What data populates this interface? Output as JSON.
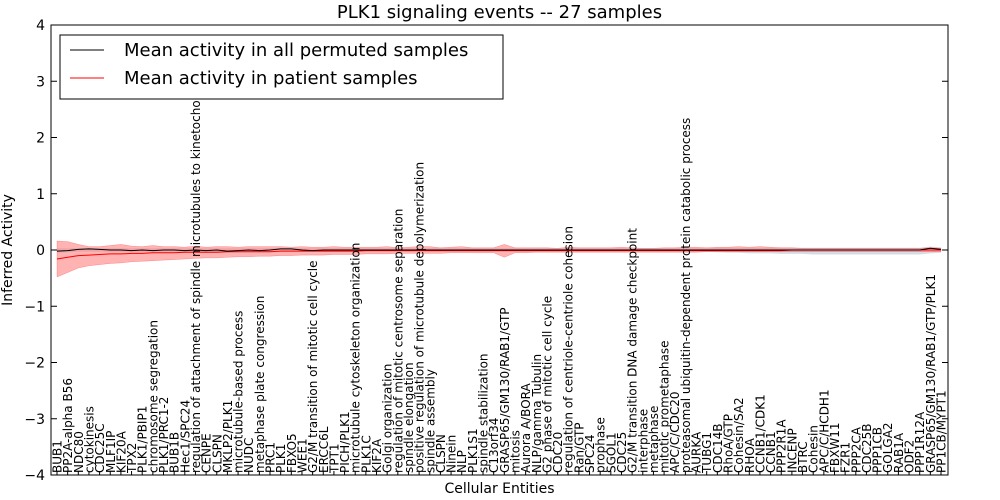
{
  "chart_data": {
    "type": "line",
    "title": "PLK1 signaling events -- 27 samples",
    "xlabel": "Cellular Entities",
    "ylabel": "Inferred Activity",
    "ylim": [
      -4,
      4
    ],
    "yticks": [
      -4,
      -3,
      -2,
      -1,
      0,
      1,
      2,
      3,
      4
    ],
    "grid": false,
    "legend_position": "top-left",
    "legend": [
      "Mean activity in all permuted samples",
      "Mean activity in patient samples"
    ],
    "colors": {
      "permuted": "#000000",
      "patient": "#ff0000",
      "patient_band": "#ff8080",
      "permuted_band": "#b0b8c8"
    },
    "categories": [
      "BUB1",
      "PP2A-alpha B56",
      "NDC80",
      "cytokinesis",
      "CDC25C",
      "MLF1IP",
      "KIF20A",
      "TPX2",
      "PLK1/PBIP1",
      "chromosome segregation",
      "PLK1/PRC1-2",
      "BUB1B",
      "Hec1/SPC24",
      "regulation of attachment of spindle microtubules to kinetochore",
      "CENPE",
      "CLSPN",
      "MKLP2/PLK1",
      "microtubule-based process",
      "NUDC",
      "metaphase plate congression",
      "PRC1",
      "PLK1",
      "FBXO5",
      "WEE1",
      "G2/M transition of mitotic cell cycle",
      "ERCC6L",
      "TPT1",
      "PICH/PLK1",
      "microtubule cytoskeleton organization",
      "PLK1C",
      "KIF2A",
      "Golgi organization",
      "regulation of mitotic centrosome separation",
      "spindle elongation",
      "positive regulation of microtubule depolymerization",
      "spindle assembly",
      "CLSPN",
      "Ninein",
      "NLP",
      "PLK1S1",
      "spindle stabilization",
      "C13orf34",
      "GRASP65/GM130/RAB1/GTP",
      "mitosis",
      "Aurora A/BORA",
      "NLP/gamma Tubulin",
      "G2 phase of mitotic cell cycle",
      "CDC20",
      "regulation of centriole-centriole cohesion",
      "Ran/GTP",
      "SPC24",
      "prophase",
      "SGOL1",
      "CDC25",
      "G2/M transition DNA damage checkpoint",
      "interphase",
      "metaphase",
      "mitotic prometaphase",
      "APC/C/CDC20",
      "proteasomal ubiquitin-dependent protein catabolic process",
      "AURKA",
      "TUBG1",
      "CDC14B",
      "RhoA/GTP",
      "Cohesin/SA2",
      "RHOA",
      "CCNB1/CDK1",
      "CCNB1",
      "PPP2R1A",
      "INCENP",
      "BTRC",
      "Cohesin",
      "APC/C/HCDH1",
      "FBXW11",
      "FZR1",
      "PPP2CA",
      "CDC25B",
      "PPP1CB",
      "GOLGA2",
      "RAB1A",
      "ODF2",
      "PPP1R12A",
      "GRASP65/GM130/RAB1/GTP/PLK1",
      "PP1CB/MYPT1"
    ],
    "series": [
      {
        "name": "Mean activity in patient samples",
        "values": [
          -0.16,
          -0.13,
          -0.1,
          -0.09,
          -0.08,
          -0.07,
          -0.07,
          -0.06,
          -0.06,
          -0.05,
          -0.05,
          -0.05,
          -0.04,
          -0.04,
          -0.04,
          -0.04,
          -0.03,
          -0.03,
          -0.03,
          -0.03,
          -0.03,
          -0.02,
          -0.02,
          -0.02,
          -0.02,
          -0.02,
          -0.02,
          -0.02,
          -0.02,
          -0.01,
          -0.01,
          -0.01,
          -0.01,
          -0.01,
          -0.01,
          -0.01,
          -0.01,
          -0.01,
          -0.01,
          -0.01,
          -0.01,
          -0.01,
          -0.01,
          -0.01,
          -0.01,
          -0.01,
          -0.01,
          -0.01,
          -0.01,
          -0.01,
          -0.01,
          -0.01,
          -0.01,
          -0.01,
          -0.01,
          -0.01,
          -0.01,
          -0.01,
          -0.01,
          -0.01,
          -0.01,
          -0.01,
          -0.01,
          -0.01,
          -0.01,
          -0.01,
          -0.01,
          -0.01,
          -0.01,
          0.0,
          0.0,
          0.0,
          0.0,
          0.0,
          0.0,
          0.0,
          0.0,
          0.0,
          0.0,
          0.0,
          0.0,
          0.0,
          0.0,
          0.0
        ],
        "band_low": [
          -0.48,
          -0.4,
          -0.32,
          -0.28,
          -0.26,
          -0.24,
          -0.23,
          -0.21,
          -0.2,
          -0.19,
          -0.18,
          -0.17,
          -0.16,
          -0.15,
          -0.14,
          -0.14,
          -0.13,
          -0.12,
          -0.12,
          -0.11,
          -0.11,
          -0.1,
          -0.1,
          -0.09,
          -0.09,
          -0.09,
          -0.08,
          -0.08,
          -0.08,
          -0.07,
          -0.07,
          -0.07,
          -0.06,
          -0.06,
          -0.06,
          -0.06,
          -0.06,
          -0.05,
          -0.05,
          -0.05,
          -0.05,
          -0.05,
          -0.13,
          -0.05,
          -0.05,
          -0.04,
          -0.04,
          -0.04,
          -0.04,
          -0.04,
          -0.04,
          -0.04,
          -0.04,
          -0.04,
          -0.04,
          -0.04,
          -0.04,
          -0.04,
          -0.04,
          -0.04,
          -0.04,
          -0.03,
          -0.03,
          -0.03,
          -0.03,
          -0.03,
          -0.03,
          -0.03,
          -0.03,
          -0.03,
          -0.03,
          -0.03,
          -0.03,
          -0.03,
          -0.03,
          -0.03,
          -0.03,
          -0.03,
          -0.03,
          -0.03,
          -0.03,
          -0.03,
          -0.03,
          -0.03
        ],
        "band_high": [
          0.16,
          0.15,
          0.1,
          0.06,
          0.06,
          0.08,
          0.1,
          0.07,
          0.06,
          0.08,
          0.06,
          0.06,
          0.05,
          0.07,
          0.05,
          0.06,
          0.06,
          0.05,
          0.06,
          0.06,
          0.06,
          0.06,
          0.05,
          0.06,
          0.05,
          0.05,
          0.06,
          0.05,
          0.05,
          0.05,
          0.05,
          0.06,
          0.04,
          0.05,
          0.06,
          0.06,
          0.04,
          0.05,
          0.06,
          0.04,
          0.04,
          0.04,
          0.1,
          0.04,
          0.04,
          0.04,
          0.04,
          0.03,
          0.05,
          0.04,
          0.04,
          0.04,
          0.04,
          0.05,
          0.04,
          0.03,
          0.03,
          0.04,
          0.04,
          0.05,
          0.05,
          0.04,
          0.05,
          0.05,
          0.06,
          0.05,
          0.06,
          0.05,
          0.04,
          0.04,
          0.03,
          0.03,
          0.03,
          0.03,
          0.03,
          0.03,
          0.03,
          0.03,
          0.03,
          0.03,
          0.03,
          0.03,
          0.04,
          0.03
        ]
      },
      {
        "name": "Mean activity in all permuted samples",
        "values": [
          -0.02,
          -0.01,
          0.01,
          0.02,
          0.01,
          0.0,
          0.0,
          -0.01,
          0.0,
          -0.01,
          0.0,
          0.0,
          -0.01,
          0.0,
          -0.01,
          0.0,
          -0.02,
          -0.01,
          0.0,
          -0.01,
          0.0,
          0.02,
          0.02,
          0.0,
          -0.01,
          0.0,
          0.0,
          0.0,
          0.0,
          0.0,
          0.0,
          0.0,
          0.0,
          0.0,
          0.0,
          0.0,
          0.0,
          0.0,
          0.0,
          0.0,
          0.0,
          0.0,
          0.0,
          0.0,
          0.0,
          0.0,
          0.0,
          0.0,
          0.0,
          0.0,
          0.0,
          0.0,
          0.0,
          0.0,
          0.0,
          0.0,
          0.0,
          0.0,
          0.0,
          0.0,
          0.0,
          0.0,
          0.0,
          0.0,
          0.0,
          0.0,
          0.0,
          0.0,
          0.0,
          0.0,
          0.0,
          0.0,
          0.0,
          0.0,
          0.0,
          0.0,
          0.0,
          0.0,
          0.0,
          0.0,
          0.0,
          0.0,
          0.03,
          0.01
        ],
        "band_low": [
          -0.05,
          -0.04,
          -0.03,
          -0.03,
          -0.03,
          -0.03,
          -0.03,
          -0.03,
          -0.03,
          -0.03,
          -0.03,
          -0.03,
          -0.03,
          -0.03,
          -0.03,
          -0.03,
          -0.03,
          -0.03,
          -0.03,
          -0.03,
          -0.03,
          -0.03,
          -0.03,
          -0.03,
          -0.03,
          -0.03,
          -0.03,
          -0.03,
          -0.03,
          -0.03,
          -0.03,
          -0.03,
          -0.03,
          -0.03,
          -0.03,
          -0.03,
          -0.03,
          -0.03,
          -0.03,
          -0.03,
          -0.03,
          -0.03,
          -0.03,
          -0.03,
          -0.03,
          -0.03,
          -0.03,
          -0.03,
          -0.03,
          -0.03,
          -0.03,
          -0.03,
          -0.03,
          -0.03,
          -0.03,
          -0.03,
          -0.03,
          -0.03,
          -0.03,
          -0.03,
          -0.03,
          -0.03,
          -0.04,
          -0.05,
          -0.05,
          -0.06,
          -0.06,
          -0.06,
          -0.07,
          -0.07,
          -0.07,
          -0.08,
          -0.08,
          -0.08,
          -0.08,
          -0.08,
          -0.08,
          -0.08,
          -0.08,
          -0.08,
          -0.08,
          -0.08,
          -0.06,
          -0.05
        ],
        "band_high": [
          0.03,
          0.03,
          0.03,
          0.03,
          0.03,
          0.03,
          0.03,
          0.03,
          0.03,
          0.03,
          0.03,
          0.03,
          0.03,
          0.03,
          0.03,
          0.03,
          0.03,
          0.03,
          0.03,
          0.03,
          0.03,
          0.03,
          0.03,
          0.03,
          0.03,
          0.03,
          0.03,
          0.03,
          0.03,
          0.03,
          0.03,
          0.03,
          0.03,
          0.03,
          0.03,
          0.03,
          0.03,
          0.03,
          0.03,
          0.03,
          0.03,
          0.03,
          0.03,
          0.03,
          0.03,
          0.03,
          0.03,
          0.03,
          0.03,
          0.03,
          0.03,
          0.03,
          0.03,
          0.03,
          0.03,
          0.03,
          0.03,
          0.03,
          0.03,
          0.03,
          0.03,
          0.03,
          0.04,
          0.04,
          0.04,
          0.04,
          0.04,
          0.04,
          0.04,
          0.04,
          0.04,
          0.04,
          0.04,
          0.04,
          0.04,
          0.04,
          0.04,
          0.04,
          0.04,
          0.04,
          0.04,
          0.04,
          0.06,
          0.05
        ]
      }
    ]
  }
}
